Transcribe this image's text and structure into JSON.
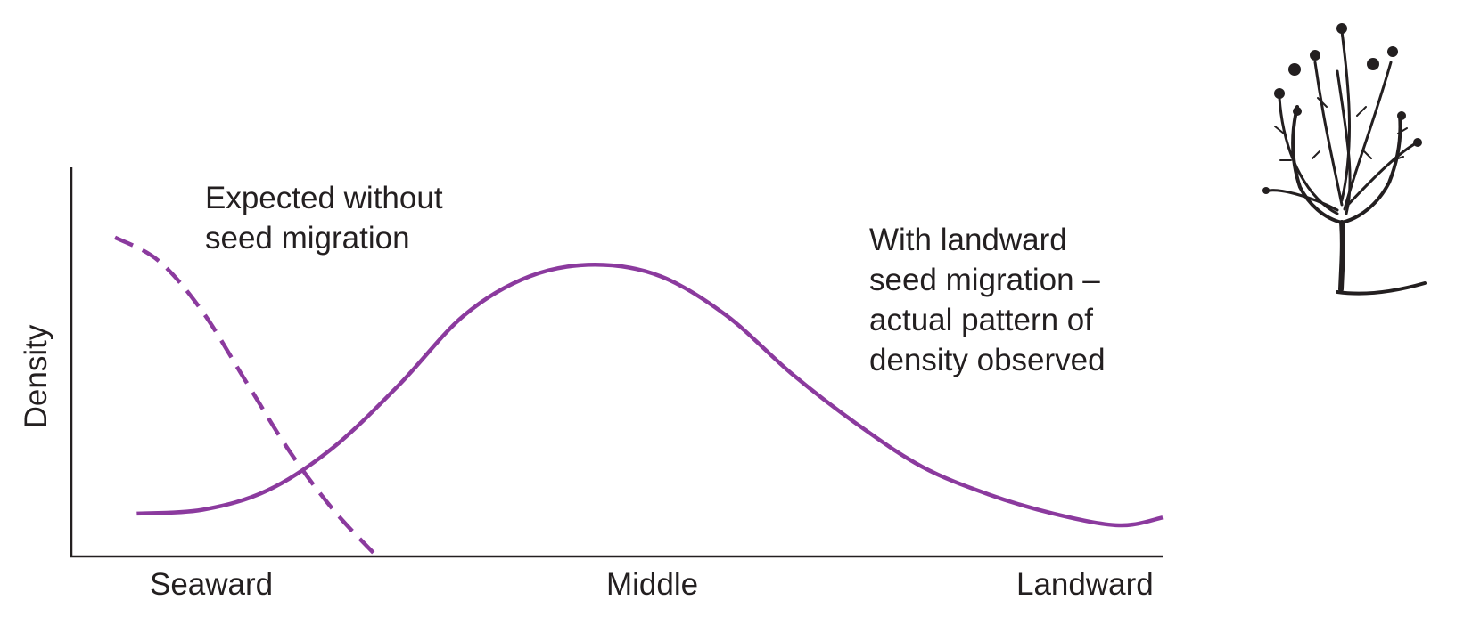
{
  "chart_data": {
    "type": "line",
    "xlabel": "",
    "ylabel": "Density",
    "x_categories": [
      "Seaward",
      "Middle",
      "Landward"
    ],
    "xlim": [
      0,
      1
    ],
    "ylim": [
      0,
      1
    ],
    "grid": false,
    "series": [
      {
        "name": "Expected without seed migration",
        "style": "dashed",
        "color": "#8b3a9e",
        "x": [
          0.04,
          0.08,
          0.12,
          0.16,
          0.2,
          0.24,
          0.28
        ],
        "y": [
          0.82,
          0.76,
          0.63,
          0.45,
          0.27,
          0.12,
          0.0
        ]
      },
      {
        "name": "With landward seed migration – actual pattern of density observed",
        "style": "solid",
        "color": "#8b3a9e",
        "x": [
          0.06,
          0.12,
          0.18,
          0.24,
          0.3,
          0.36,
          0.42,
          0.48,
          0.54,
          0.6,
          0.66,
          0.72,
          0.78,
          0.84,
          0.9,
          0.96,
          1.0
        ],
        "y": [
          0.11,
          0.12,
          0.17,
          0.28,
          0.44,
          0.62,
          0.72,
          0.75,
          0.72,
          0.62,
          0.47,
          0.34,
          0.23,
          0.16,
          0.11,
          0.08,
          0.1
        ]
      }
    ],
    "annotations": [
      {
        "lines": [
          "Expected without",
          "seed migration"
        ]
      },
      {
        "lines": [
          "With landward",
          "seed migration –",
          "actual pattern of",
          "density observed"
        ]
      }
    ]
  },
  "figure": {
    "illustration_icon": "plant-icon"
  }
}
